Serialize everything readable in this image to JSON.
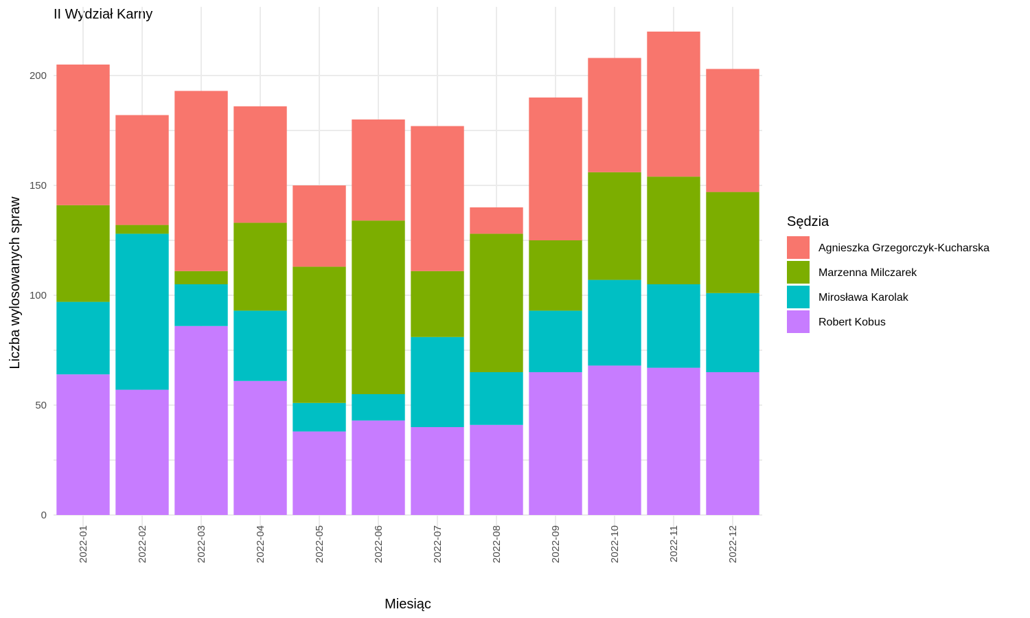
{
  "chart_data": {
    "type": "bar",
    "stacked": true,
    "title": "II Wydział Karny",
    "xlabel": "Miesiąc",
    "ylabel": "Liczba wylosowanych spraw",
    "ylim": [
      0,
      220
    ],
    "yticks": [
      0,
      50,
      100,
      150,
      200
    ],
    "grid": true,
    "legend_position": "right",
    "legend_title": "Sędzia",
    "categories": [
      "2022-01",
      "2022-02",
      "2022-03",
      "2022-04",
      "2022-05",
      "2022-06",
      "2022-07",
      "2022-08",
      "2022-09",
      "2022-10",
      "2022-11",
      "2022-12"
    ],
    "series": [
      {
        "name": "Agnieszka Grzegorczyk-Kucharska",
        "color": "#F8766D",
        "values": [
          64,
          50,
          82,
          53,
          37,
          46,
          66,
          12,
          65,
          52,
          66,
          56
        ]
      },
      {
        "name": "Marzenna Milczarek",
        "color": "#7CAE00",
        "values": [
          44,
          4,
          6,
          40,
          62,
          79,
          30,
          63,
          32,
          49,
          49,
          46
        ]
      },
      {
        "name": "Mirosława Karolak",
        "color": "#00BFC4",
        "values": [
          33,
          71,
          19,
          32,
          13,
          12,
          41,
          24,
          28,
          39,
          38,
          36
        ]
      },
      {
        "name": "Robert Kobus",
        "color": "#C77CFF",
        "values": [
          64,
          57,
          86,
          61,
          38,
          43,
          40,
          41,
          65,
          68,
          67,
          65
        ]
      }
    ]
  }
}
